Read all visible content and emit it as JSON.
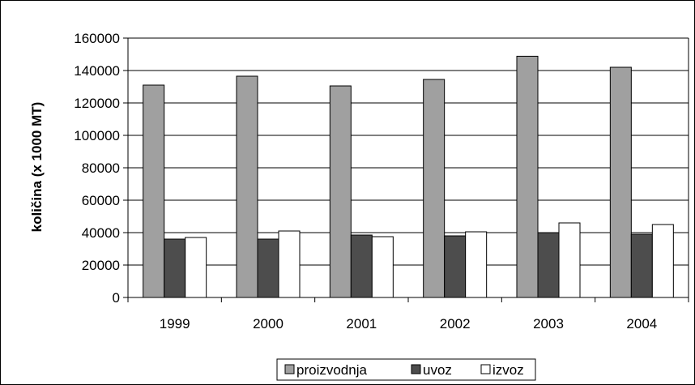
{
  "chart_data": {
    "type": "bar",
    "title": "",
    "xlabel": "",
    "ylabel": "količina (x 1000 MT)",
    "categories": [
      "1999",
      "2000",
      "2001",
      "2002",
      "2003",
      "2004"
    ],
    "series": [
      {
        "name": "proizvodnja",
        "color": "#a0a0a0",
        "values": [
          131000,
          136500,
          130500,
          134500,
          148800,
          142000
        ]
      },
      {
        "name": "uvoz",
        "color": "#4d4d4d",
        "values": [
          36000,
          36000,
          38500,
          38000,
          40000,
          39000
        ]
      },
      {
        "name": "izvoz",
        "color": "#ffffff",
        "values": [
          37000,
          41000,
          37500,
          40500,
          46000,
          45000
        ]
      }
    ],
    "ylim": [
      0,
      160000
    ],
    "yticks": [
      "0",
      "20000",
      "40000",
      "60000",
      "80000",
      "100000",
      "120000",
      "140000",
      "160000"
    ],
    "grid": true,
    "legend_position": "bottom"
  }
}
